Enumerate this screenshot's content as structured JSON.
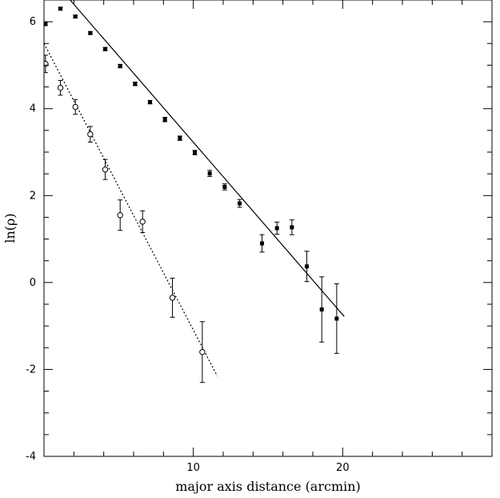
{
  "chart_data": {
    "type": "scatter",
    "xlabel": "major axis distance (arcmin)",
    "ylabel": "ln(ρ)",
    "xlim": [
      0,
      30
    ],
    "ylim": [
      -4,
      6.5
    ],
    "xticks": [
      10,
      20
    ],
    "yticks": [
      -4,
      -2,
      0,
      2,
      4,
      6
    ],
    "grid": false,
    "series": [
      {
        "marker": "filled-square",
        "points": [
          {
            "x": 0.1,
            "y": 5.95,
            "err": 0.04
          },
          {
            "x": 1.1,
            "y": 6.3,
            "err": 0.03
          },
          {
            "x": 2.1,
            "y": 6.12,
            "err": 0.03
          },
          {
            "x": 3.1,
            "y": 5.74,
            "err": 0.03
          },
          {
            "x": 4.1,
            "y": 5.37,
            "err": 0.04
          },
          {
            "x": 5.1,
            "y": 4.98,
            "err": 0.04
          },
          {
            "x": 6.1,
            "y": 4.57,
            "err": 0.04
          },
          {
            "x": 7.1,
            "y": 4.15,
            "err": 0.04
          },
          {
            "x": 8.1,
            "y": 3.75,
            "err": 0.05
          },
          {
            "x": 9.1,
            "y": 3.32,
            "err": 0.05
          },
          {
            "x": 10.1,
            "y": 2.99,
            "err": 0.05
          },
          {
            "x": 11.1,
            "y": 2.51,
            "err": 0.07
          },
          {
            "x": 12.1,
            "y": 2.2,
            "err": 0.07
          },
          {
            "x": 13.1,
            "y": 1.82,
            "err": 0.09
          },
          {
            "x": 14.6,
            "y": 0.9,
            "err": 0.2
          },
          {
            "x": 15.6,
            "y": 1.25,
            "err": 0.14
          },
          {
            "x": 16.6,
            "y": 1.27,
            "err": 0.17
          },
          {
            "x": 17.6,
            "y": 0.37,
            "err": 0.35
          },
          {
            "x": 18.6,
            "y": -0.62,
            "err": 0.75
          },
          {
            "x": 19.6,
            "y": -0.83,
            "err": 0.8
          }
        ]
      },
      {
        "marker": "open-circle",
        "points": [
          {
            "x": 0.1,
            "y": 5.03,
            "err": 0.2
          },
          {
            "x": 1.1,
            "y": 4.48,
            "err": 0.17
          },
          {
            "x": 2.1,
            "y": 4.04,
            "err": 0.17
          },
          {
            "x": 3.1,
            "y": 3.41,
            "err": 0.18
          },
          {
            "x": 4.1,
            "y": 2.6,
            "err": 0.23
          },
          {
            "x": 5.1,
            "y": 1.55,
            "err": 0.35
          },
          {
            "x": 6.6,
            "y": 1.4,
            "err": 0.25
          },
          {
            "x": 8.6,
            "y": -0.35,
            "err": 0.45
          },
          {
            "x": 10.6,
            "y": -1.6,
            "err": 0.7
          }
        ]
      }
    ],
    "fits": [
      {
        "style": "solid",
        "x": [
          1.5,
          20.1
        ],
        "y": [
          6.6,
          -0.78
        ]
      },
      {
        "style": "dotted",
        "x": [
          0,
          11.6
        ],
        "y": [
          5.5,
          -2.15
        ]
      }
    ]
  }
}
